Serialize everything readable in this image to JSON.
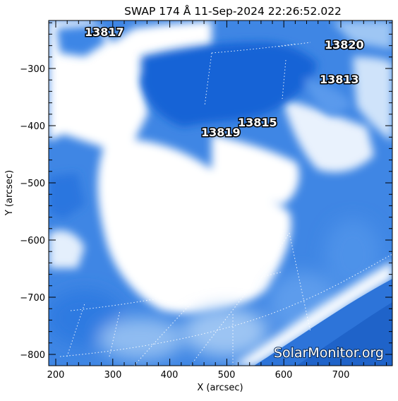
{
  "title": "SWAP 174 Å 11-Sep-2024 22:26:52.022",
  "axes": {
    "x_label": "X (arcsec)",
    "y_label": "Y (arcsec)",
    "x_ticks": [
      "200",
      "300",
      "400",
      "500",
      "600",
      "700"
    ],
    "y_ticks": [
      "−300",
      "−400",
      "−500",
      "−600",
      "−700",
      "−800"
    ]
  },
  "regions": [
    {
      "id": "13817",
      "label": "13817"
    },
    {
      "id": "13820",
      "label": "13820"
    },
    {
      "id": "13813",
      "label": "13813"
    },
    {
      "id": "13815",
      "label": "13815"
    },
    {
      "id": "13819",
      "label": "13819"
    }
  ],
  "watermark": "SolarMonitor.org",
  "colors": {
    "deep_blue": "#1565d8",
    "mid_blue": "#4f93ea",
    "light_blue": "#b9d6f7",
    "white": "#ffffff"
  }
}
